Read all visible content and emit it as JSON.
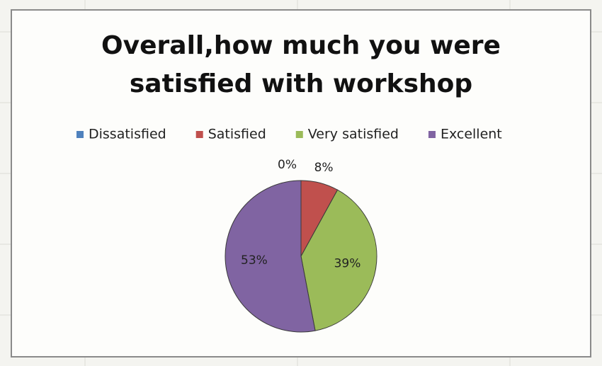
{
  "chart_data": {
    "type": "pie",
    "title": "Overall,how much you were satisfied with workshop",
    "categories": [
      "Dissatisfied",
      "Satisfied",
      "Very satisfied",
      "Excellent"
    ],
    "values": [
      0,
      8,
      39,
      53
    ],
    "value_labels": [
      "0%",
      "8%",
      "39%",
      "53%"
    ],
    "colors": [
      "#4f81bd",
      "#c0504d",
      "#9bbb59",
      "#8064a2"
    ],
    "legend": "top"
  }
}
